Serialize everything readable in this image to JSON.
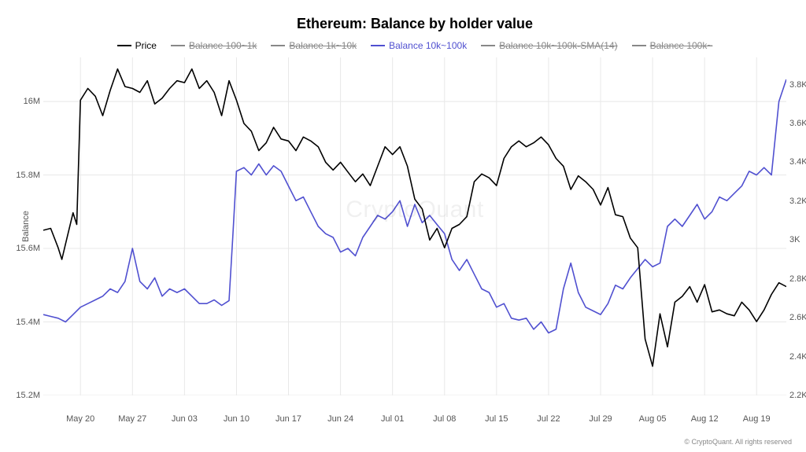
{
  "chart": {
    "type": "line",
    "title": "Ethereum: Balance by holder value",
    "watermark": "CryptoQuant",
    "footer": "© CryptoQuant. All rights reserved",
    "background_color": "#ffffff",
    "grid_color": "#e8e8e8",
    "title_fontsize": 18,
    "tick_fontsize": 11,
    "legend": [
      {
        "label": "Price",
        "color": "#000000",
        "enabled": true
      },
      {
        "label": "Balance 100~1k",
        "color": "#888888",
        "enabled": false
      },
      {
        "label": "Balance 1k~10k",
        "color": "#888888",
        "enabled": false
      },
      {
        "label": "Balance 10k~100k",
        "color": "#5050d0",
        "enabled": true
      },
      {
        "label": "Balance 10k~100k-SMA(14)",
        "color": "#888888",
        "enabled": false
      },
      {
        "label": "Balance 100k~",
        "color": "#888888",
        "enabled": false
      }
    ],
    "y_left": {
      "label": "Balance",
      "min": 15200000,
      "max": 16120000,
      "ticks": [
        {
          "v": 15200000,
          "label": "15.2M"
        },
        {
          "v": 15400000,
          "label": "15.4M"
        },
        {
          "v": 15600000,
          "label": "15.6M"
        },
        {
          "v": 15800000,
          "label": "15.8M"
        },
        {
          "v": 16000000,
          "label": "16M"
        }
      ]
    },
    "y_right": {
      "min": 2200,
      "max": 3940,
      "ticks": [
        {
          "v": 2200,
          "label": "2.2K"
        },
        {
          "v": 2400,
          "label": "2.4K"
        },
        {
          "v": 2600,
          "label": "2.6K"
        },
        {
          "v": 2800,
          "label": "2.8K"
        },
        {
          "v": 3000,
          "label": "3K"
        },
        {
          "v": 3200,
          "label": "3.2K"
        },
        {
          "v": 3400,
          "label": "3.4K"
        },
        {
          "v": 3600,
          "label": "3.6K"
        },
        {
          "v": 3800,
          "label": "3.8K"
        }
      ]
    },
    "x_axis": {
      "min": 0,
      "max": 100,
      "ticks": [
        {
          "v": 5,
          "label": "May 20"
        },
        {
          "v": 12,
          "label": "May 27"
        },
        {
          "v": 19,
          "label": "Jun 03"
        },
        {
          "v": 26,
          "label": "Jun 10"
        },
        {
          "v": 33,
          "label": "Jun 17"
        },
        {
          "v": 40,
          "label": "Jun 24"
        },
        {
          "v": 47,
          "label": "Jul 01"
        },
        {
          "v": 54,
          "label": "Jul 08"
        },
        {
          "v": 61,
          "label": "Jul 15"
        },
        {
          "v": 68,
          "label": "Jul 22"
        },
        {
          "v": 75,
          "label": "Jul 29"
        },
        {
          "v": 82,
          "label": "Aug 05"
        },
        {
          "v": 89,
          "label": "Aug 12"
        },
        {
          "v": 96,
          "label": "Aug 19"
        }
      ]
    },
    "series": {
      "price": {
        "axis": "right",
        "color": "#000000",
        "stroke_width": 1.6,
        "points": [
          [
            0,
            3050
          ],
          [
            1,
            3060
          ],
          [
            2,
            2960
          ],
          [
            2.5,
            2900
          ],
          [
            3,
            2980
          ],
          [
            4,
            3140
          ],
          [
            4.5,
            3080
          ],
          [
            5,
            3720
          ],
          [
            6,
            3780
          ],
          [
            7,
            3740
          ],
          [
            8,
            3640
          ],
          [
            9,
            3770
          ],
          [
            10,
            3880
          ],
          [
            11,
            3790
          ],
          [
            12,
            3780
          ],
          [
            13,
            3760
          ],
          [
            14,
            3820
          ],
          [
            15,
            3700
          ],
          [
            16,
            3730
          ],
          [
            17,
            3780
          ],
          [
            18,
            3820
          ],
          [
            19,
            3810
          ],
          [
            20,
            3880
          ],
          [
            21,
            3780
          ],
          [
            22,
            3820
          ],
          [
            23,
            3760
          ],
          [
            24,
            3640
          ],
          [
            25,
            3820
          ],
          [
            26,
            3720
          ],
          [
            27,
            3600
          ],
          [
            28,
            3560
          ],
          [
            29,
            3460
          ],
          [
            30,
            3500
          ],
          [
            31,
            3580
          ],
          [
            32,
            3520
          ],
          [
            33,
            3510
          ],
          [
            34,
            3460
          ],
          [
            35,
            3530
          ],
          [
            36,
            3510
          ],
          [
            37,
            3480
          ],
          [
            38,
            3400
          ],
          [
            39,
            3360
          ],
          [
            40,
            3400
          ],
          [
            41,
            3350
          ],
          [
            42,
            3300
          ],
          [
            43,
            3340
          ],
          [
            44,
            3280
          ],
          [
            45,
            3380
          ],
          [
            46,
            3480
          ],
          [
            47,
            3440
          ],
          [
            48,
            3480
          ],
          [
            49,
            3380
          ],
          [
            50,
            3210
          ],
          [
            51,
            3160
          ],
          [
            52,
            3000
          ],
          [
            53,
            3060
          ],
          [
            54,
            2960
          ],
          [
            55,
            3060
          ],
          [
            56,
            3080
          ],
          [
            57,
            3120
          ],
          [
            58,
            3300
          ],
          [
            59,
            3340
          ],
          [
            60,
            3320
          ],
          [
            61,
            3280
          ],
          [
            62,
            3420
          ],
          [
            63,
            3480
          ],
          [
            64,
            3510
          ],
          [
            65,
            3480
          ],
          [
            66,
            3500
          ],
          [
            67,
            3530
          ],
          [
            68,
            3490
          ],
          [
            69,
            3420
          ],
          [
            70,
            3380
          ],
          [
            71,
            3260
          ],
          [
            72,
            3330
          ],
          [
            73,
            3300
          ],
          [
            74,
            3260
          ],
          [
            75,
            3180
          ],
          [
            76,
            3270
          ],
          [
            77,
            3130
          ],
          [
            78,
            3120
          ],
          [
            79,
            3010
          ],
          [
            80,
            2960
          ],
          [
            81,
            2490
          ],
          [
            82,
            2350
          ],
          [
            83,
            2620
          ],
          [
            84,
            2450
          ],
          [
            85,
            2680
          ],
          [
            86,
            2710
          ],
          [
            87,
            2760
          ],
          [
            88,
            2680
          ],
          [
            89,
            2770
          ],
          [
            90,
            2630
          ],
          [
            91,
            2640
          ],
          [
            92,
            2620
          ],
          [
            93,
            2610
          ],
          [
            94,
            2680
          ],
          [
            95,
            2640
          ],
          [
            96,
            2580
          ],
          [
            97,
            2640
          ],
          [
            98,
            2720
          ],
          [
            99,
            2780
          ],
          [
            100,
            2760
          ]
        ]
      },
      "balance_10k_100k": {
        "axis": "left",
        "color": "#5050d0",
        "stroke_width": 1.6,
        "points": [
          [
            0,
            15420000
          ],
          [
            1,
            15415000
          ],
          [
            2,
            15410000
          ],
          [
            3,
            15400000
          ],
          [
            4,
            15420000
          ],
          [
            5,
            15440000
          ],
          [
            6,
            15450000
          ],
          [
            7,
            15460000
          ],
          [
            8,
            15470000
          ],
          [
            9,
            15490000
          ],
          [
            10,
            15480000
          ],
          [
            11,
            15510000
          ],
          [
            12,
            15600000
          ],
          [
            13,
            15510000
          ],
          [
            14,
            15490000
          ],
          [
            15,
            15520000
          ],
          [
            16,
            15470000
          ],
          [
            17,
            15490000
          ],
          [
            18,
            15480000
          ],
          [
            19,
            15490000
          ],
          [
            20,
            15470000
          ],
          [
            21,
            15450000
          ],
          [
            22,
            15450000
          ],
          [
            23,
            15460000
          ],
          [
            24,
            15445000
          ],
          [
            25,
            15458000
          ],
          [
            25.5,
            15630000
          ],
          [
            26,
            15810000
          ],
          [
            27,
            15820000
          ],
          [
            28,
            15800000
          ],
          [
            29,
            15830000
          ],
          [
            30,
            15800000
          ],
          [
            31,
            15825000
          ],
          [
            32,
            15810000
          ],
          [
            33,
            15770000
          ],
          [
            34,
            15730000
          ],
          [
            35,
            15740000
          ],
          [
            36,
            15700000
          ],
          [
            37,
            15660000
          ],
          [
            38,
            15640000
          ],
          [
            39,
            15630000
          ],
          [
            40,
            15590000
          ],
          [
            41,
            15600000
          ],
          [
            42,
            15580000
          ],
          [
            43,
            15630000
          ],
          [
            44,
            15660000
          ],
          [
            45,
            15690000
          ],
          [
            46,
            15680000
          ],
          [
            47,
            15700000
          ],
          [
            48,
            15730000
          ],
          [
            49,
            15660000
          ],
          [
            50,
            15720000
          ],
          [
            51,
            15670000
          ],
          [
            52,
            15690000
          ],
          [
            53,
            15665000
          ],
          [
            54,
            15640000
          ],
          [
            55,
            15570000
          ],
          [
            56,
            15540000
          ],
          [
            57,
            15570000
          ],
          [
            58,
            15530000
          ],
          [
            59,
            15490000
          ],
          [
            60,
            15480000
          ],
          [
            61,
            15440000
          ],
          [
            62,
            15450000
          ],
          [
            63,
            15410000
          ],
          [
            64,
            15405000
          ],
          [
            65,
            15410000
          ],
          [
            66,
            15380000
          ],
          [
            67,
            15400000
          ],
          [
            68,
            15370000
          ],
          [
            69,
            15380000
          ],
          [
            70,
            15490000
          ],
          [
            71,
            15560000
          ],
          [
            72,
            15480000
          ],
          [
            73,
            15440000
          ],
          [
            74,
            15430000
          ],
          [
            75,
            15420000
          ],
          [
            76,
            15450000
          ],
          [
            77,
            15500000
          ],
          [
            78,
            15490000
          ],
          [
            79,
            15520000
          ],
          [
            80,
            15545000
          ],
          [
            81,
            15570000
          ],
          [
            82,
            15550000
          ],
          [
            83,
            15560000
          ],
          [
            84,
            15660000
          ],
          [
            85,
            15680000
          ],
          [
            86,
            15660000
          ],
          [
            87,
            15690000
          ],
          [
            88,
            15720000
          ],
          [
            89,
            15680000
          ],
          [
            90,
            15700000
          ],
          [
            91,
            15740000
          ],
          [
            92,
            15730000
          ],
          [
            93,
            15750000
          ],
          [
            94,
            15770000
          ],
          [
            95,
            15810000
          ],
          [
            96,
            15800000
          ],
          [
            97,
            15820000
          ],
          [
            98,
            15800000
          ],
          [
            99,
            16000000
          ],
          [
            100,
            16060000
          ]
        ]
      }
    }
  }
}
